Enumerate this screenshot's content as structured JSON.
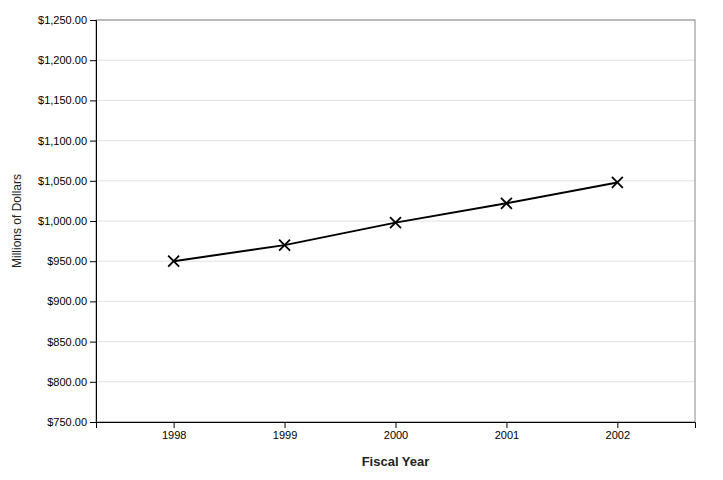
{
  "chart_data": {
    "type": "line",
    "x": [
      1998,
      1999,
      2000,
      2001,
      2002
    ],
    "values": [
      950,
      970,
      998,
      1022,
      1048
    ],
    "color": "#000000",
    "marker": "x",
    "xlabel": "Fiscal Year",
    "ylabel": "Millions of Dollars",
    "xlim": [
      1997.3,
      2002.7
    ],
    "xticks": [
      1998,
      1999,
      2000,
      2001,
      2002
    ],
    "ylim": [
      750,
      1250
    ],
    "yticks": [
      {
        "value": 750,
        "label": "$750.00"
      },
      {
        "value": 800,
        "label": "$800.00"
      },
      {
        "value": 850,
        "label": "$850.00"
      },
      {
        "value": 900,
        "label": "$900.00"
      },
      {
        "value": 950,
        "label": "$950.00"
      },
      {
        "value": 1000,
        "label": "$1,000.00"
      },
      {
        "value": 1050,
        "label": "$1,050.00"
      },
      {
        "value": 1100,
        "label": "$1,100.00"
      },
      {
        "value": 1150,
        "label": "$1,150.00"
      },
      {
        "value": 1200,
        "label": "$1,200.00"
      },
      {
        "value": 1250,
        "label": "$1,250.00"
      }
    ],
    "grid": true
  }
}
